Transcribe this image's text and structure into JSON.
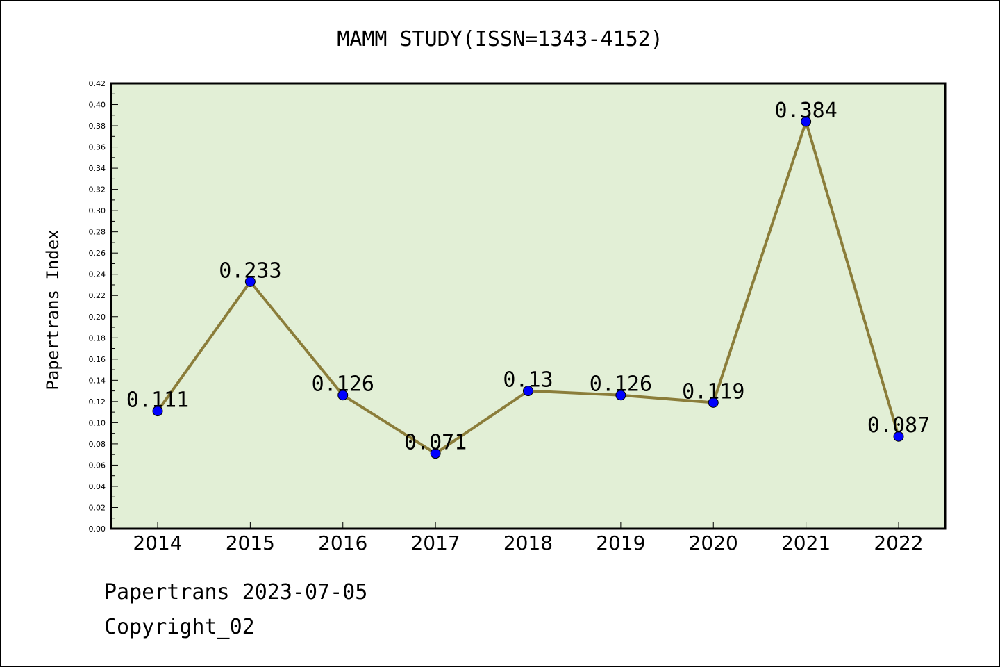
{
  "chart_data": {
    "type": "line",
    "title": "MAMM STUDY(ISSN=1343-4152)",
    "xlabel": "",
    "ylabel": "Papertrans Index",
    "categories": [
      "2014",
      "2015",
      "2016",
      "2017",
      "2018",
      "2019",
      "2020",
      "2021",
      "2022"
    ],
    "values": [
      0.111,
      0.233,
      0.126,
      0.071,
      0.13,
      0.126,
      0.119,
      0.384,
      0.087
    ],
    "data_labels": [
      "0.111",
      "0.233",
      "0.126",
      "0.071",
      "0.13",
      "0.126",
      "0.119",
      "0.384",
      "0.087"
    ],
    "ylim": [
      0,
      0.42
    ],
    "yticks": [
      "0.00",
      "0.02",
      "0.04",
      "0.06",
      "0.08",
      "0.10",
      "0.12",
      "0.14",
      "0.16",
      "0.18",
      "0.20",
      "0.22",
      "0.24",
      "0.26",
      "0.28",
      "0.30",
      "0.32",
      "0.34",
      "0.36",
      "0.38",
      "0.40",
      "0.42"
    ],
    "grid": false,
    "legend": "none",
    "colors": {
      "plot_background": "#e2efd6",
      "line": "#8b7d3a",
      "marker": "#0000ff"
    }
  },
  "footer": {
    "line1": "Papertrans 2023-07-05",
    "line2": "Copyright_02"
  }
}
